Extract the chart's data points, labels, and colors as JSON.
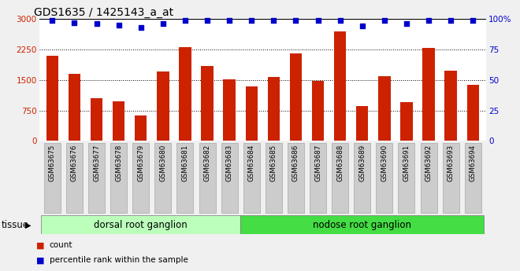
{
  "title": "GDS1635 / 1425143_a_at",
  "categories": [
    "GSM63675",
    "GSM63676",
    "GSM63677",
    "GSM63678",
    "GSM63679",
    "GSM63680",
    "GSM63681",
    "GSM63682",
    "GSM63683",
    "GSM63684",
    "GSM63685",
    "GSM63686",
    "GSM63687",
    "GSM63688",
    "GSM63689",
    "GSM63690",
    "GSM63691",
    "GSM63692",
    "GSM63693",
    "GSM63694"
  ],
  "bar_values": [
    2100,
    1650,
    1050,
    980,
    620,
    1700,
    2300,
    1850,
    1520,
    1350,
    1580,
    2150,
    1470,
    2700,
    850,
    1600,
    950,
    2280,
    1720,
    1380
  ],
  "percentile_values": [
    99,
    97,
    96,
    95,
    93,
    96,
    99,
    99,
    99,
    99,
    99,
    99,
    99,
    99,
    94,
    99,
    96,
    99,
    99,
    99
  ],
  "bar_color": "#cc2200",
  "dot_color": "#0000cc",
  "ylim_left": [
    0,
    3000
  ],
  "ylim_right": [
    0,
    100
  ],
  "yticks_left": [
    0,
    750,
    1500,
    2250,
    3000
  ],
  "yticks_right": [
    0,
    25,
    50,
    75,
    100
  ],
  "ytick_right_labels": [
    "0",
    "25",
    "50",
    "75",
    "100%"
  ],
  "grid_values": [
    750,
    1500,
    2250
  ],
  "tissue_groups": [
    {
      "label": "dorsal root ganglion",
      "start": 0,
      "end": 9,
      "color": "#bbffbb"
    },
    {
      "label": "nodose root ganglion",
      "start": 9,
      "end": 20,
      "color": "#44dd44"
    }
  ],
  "tissue_label": "tissue",
  "legend_count_label": "count",
  "legend_percentile_label": "percentile rank within the sample",
  "bg_color": "#f0f0f0",
  "plot_bg_color": "#ffffff",
  "tick_bg_color": "#cccccc"
}
